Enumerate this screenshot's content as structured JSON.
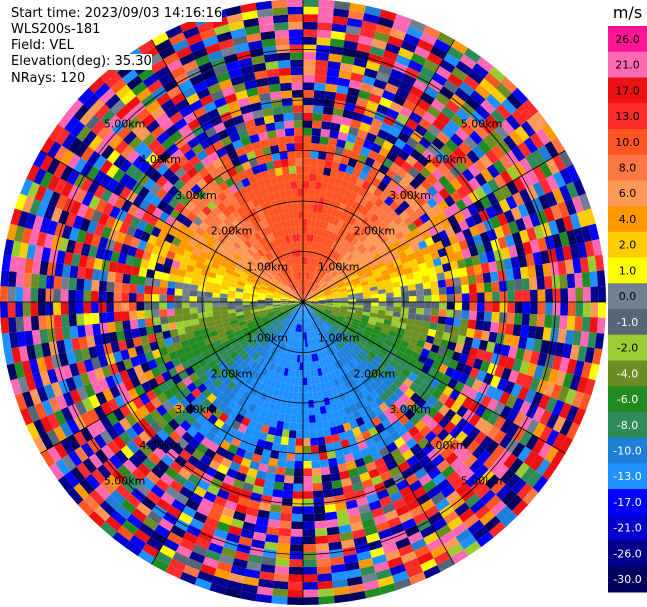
{
  "header": {
    "start_time": "Start time: 2023/09/03 14:16:16",
    "site": "WLS200s-181",
    "field": "Field: VEL",
    "elevation": "Elevation(deg): 35.30",
    "nrays": "NRays: 120"
  },
  "chart_data": {
    "type": "heatmap",
    "subtype": "polar-ppi",
    "field": "VEL",
    "unit": "m/s",
    "n_rays": 120,
    "max_range_km": 6.0,
    "range_ring_labels": [
      "1.00km",
      "2.00km",
      "3.00km",
      "4.00km",
      "5.00km"
    ],
    "colorbar": {
      "ticks": [
        "26.0",
        "21.0",
        "17.0",
        "13.0",
        "10.0",
        "8.0",
        "6.0",
        "4.0",
        "2.0",
        "1.0",
        "0.0",
        "-1.0",
        "-2.0",
        "-4.0",
        "-6.0",
        "-8.0",
        "-10.0",
        "-13.0",
        "-17.0",
        "-21.0",
        "-26.0",
        "-30.0"
      ],
      "colors": [
        "#ff1493",
        "#ff69b4",
        "#ee1111",
        "#ff2a2a",
        "#ff5522",
        "#ff7744",
        "#ff9955",
        "#ff9900",
        "#ffcc00",
        "#ffff00",
        "#708090",
        "#556677",
        "#9acd32",
        "#6b8e23",
        "#228b22",
        "#2e8b57",
        "#1e7fd8",
        "#1e90ff",
        "#0000ff",
        "#0000cd",
        "#00008b",
        "#000060"
      ]
    },
    "summary": {
      "north_sector": "positive 8 to 13 m/s",
      "south_sector": "negative -8 to -13 m/s",
      "east_west_axis": "near 0 m/s",
      "outer_ranges": "noisy / folded values beyond ~2.5 km"
    }
  }
}
